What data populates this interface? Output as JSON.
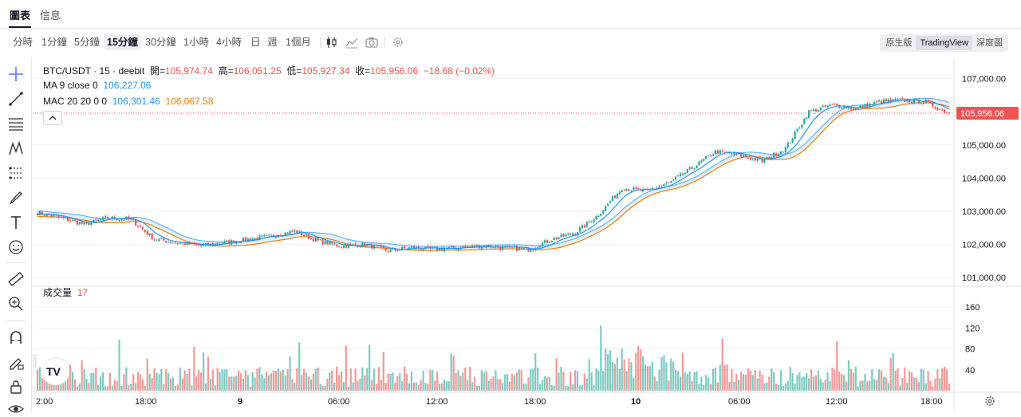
{
  "tabs": [
    {
      "label": "圖表"
    },
    {
      "label": "信息"
    }
  ],
  "toolbar": {
    "intervals": [
      {
        "label": "分時"
      },
      {
        "label": "1分鐘"
      },
      {
        "label": "5分鐘"
      },
      {
        "label": "15分鐘"
      },
      {
        "label": "30分鐘"
      },
      {
        "label": "1小時"
      },
      {
        "label": "4小時"
      },
      {
        "label": "日"
      },
      {
        "label": "週"
      },
      {
        "label": "1個月"
      }
    ],
    "active_interval": "15分鐘",
    "modes": [
      {
        "label": "原生版"
      },
      {
        "label": "TradingView"
      },
      {
        "label": "深度圖"
      }
    ],
    "active_mode": "TradingView"
  },
  "legend": {
    "symbol": "BTC/USDT · 15 · deebit",
    "open_label": "開=",
    "open": "105,974.74",
    "high_label": "高=",
    "high": "106,051.25",
    "low_label": "低=",
    "low": "105,927.34",
    "close_label": "收=",
    "close": "105,956.06",
    "change": "−18.68 (−0.02%)",
    "ma_label": "MA 9 close 0",
    "ma_value": "106,227.06",
    "mac_label": "MAC 20 20 0 0",
    "mac_upper": "106,301.46",
    "mac_lower": "106,067.58",
    "volume_label": "成交量",
    "volume_value": "17"
  },
  "price_axis": {
    "labels": [
      "107,000.00",
      "105,000.00",
      "104,000.00",
      "103,000.00",
      "102,000.00",
      "101,000.00"
    ],
    "last_price": "105,956.06"
  },
  "volume_axis": {
    "labels": [
      "160",
      "120",
      "80",
      "40"
    ]
  },
  "time_axis": {
    "labels": [
      {
        "text": "2:00",
        "bold": false
      },
      {
        "text": "18:00",
        "bold": false
      },
      {
        "text": "9",
        "bold": true
      },
      {
        "text": "06:00",
        "bold": false
      },
      {
        "text": "12:00",
        "bold": false
      },
      {
        "text": "18:00",
        "bold": false
      },
      {
        "text": "10",
        "bold": true
      },
      {
        "text": "06:00",
        "bold": false
      },
      {
        "text": "12:00",
        "bold": false
      },
      {
        "text": "18:00",
        "bold": false
      }
    ]
  },
  "colors": {
    "up": "#26a69a",
    "down": "#ef5350",
    "ma": "#2196f3",
    "mac_lower": "#f57c00",
    "band_fill": "#dcecfb"
  },
  "watermark": "TV",
  "chart_data": {
    "type": "candlestick",
    "title": "BTC/USDT · 15 · deebit",
    "ylim": [
      101000,
      107400
    ],
    "volume_ylim": [
      0,
      180
    ],
    "anchors": [
      [
        0,
        102950
      ],
      [
        10,
        102800
      ],
      [
        20,
        102600
      ],
      [
        30,
        102800
      ],
      [
        40,
        102750
      ],
      [
        50,
        102150
      ],
      [
        60,
        102050
      ],
      [
        70,
        101950
      ],
      [
        80,
        102050
      ],
      [
        90,
        102150
      ],
      [
        100,
        102250
      ],
      [
        110,
        102400
      ],
      [
        120,
        102100
      ],
      [
        130,
        101950
      ],
      [
        140,
        102000
      ],
      [
        150,
        101800
      ],
      [
        160,
        101900
      ],
      [
        170,
        101850
      ],
      [
        180,
        101900
      ],
      [
        190,
        101950
      ],
      [
        200,
        101900
      ],
      [
        210,
        101850
      ],
      [
        220,
        102150
      ],
      [
        230,
        102350
      ],
      [
        240,
        102900
      ],
      [
        250,
        103700
      ],
      [
        260,
        103600
      ],
      [
        270,
        103850
      ],
      [
        280,
        104300
      ],
      [
        290,
        104800
      ],
      [
        300,
        104700
      ],
      [
        310,
        104500
      ],
      [
        320,
        104900
      ],
      [
        330,
        106000
      ],
      [
        340,
        106200
      ],
      [
        350,
        106100
      ],
      [
        360,
        106300
      ],
      [
        370,
        106350
      ],
      [
        380,
        106300
      ],
      [
        384,
        106150
      ],
      [
        390,
        105956
      ]
    ],
    "candle_count": 391
  }
}
